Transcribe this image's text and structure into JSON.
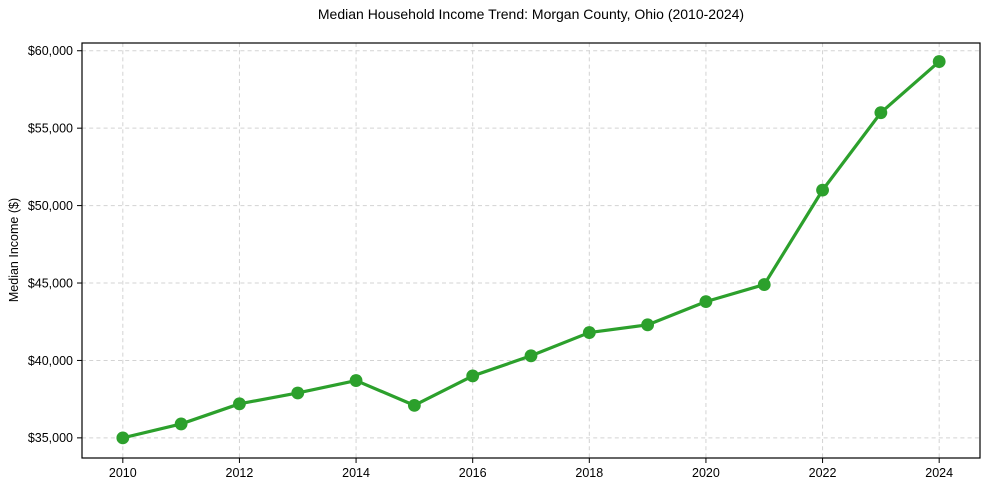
{
  "chart_data": {
    "type": "line",
    "title": "Median Household Income Trend: Morgan County, Ohio (2010-2024)",
    "xlabel": "",
    "ylabel": "Median Income ($)",
    "x": [
      2010,
      2011,
      2012,
      2013,
      2014,
      2015,
      2016,
      2017,
      2018,
      2019,
      2020,
      2021,
      2022,
      2023,
      2024
    ],
    "values": [
      35000,
      35900,
      37200,
      37900,
      38700,
      37100,
      39000,
      40300,
      41800,
      42300,
      43800,
      44900,
      51000,
      56000,
      59300
    ],
    "xticks": [
      2010,
      2012,
      2014,
      2016,
      2018,
      2020,
      2022,
      2024
    ],
    "xtick_labels": [
      "2010",
      "2012",
      "2014",
      "2016",
      "2018",
      "2020",
      "2022",
      "2024"
    ],
    "yticks": [
      35000,
      40000,
      45000,
      50000,
      55000,
      60000
    ],
    "ytick_labels": [
      "$35,000",
      "$40,000",
      "$45,000",
      "$50,000",
      "$55,000",
      "$60,000"
    ],
    "xlim": [
      2009.3,
      2024.7
    ],
    "ylim": [
      33700,
      60500
    ],
    "grid": true,
    "grid_style": "dashed",
    "legend": false,
    "marker": "circle",
    "line_color": "#2ca02c",
    "colors": {
      "background": "#ffffff",
      "grid": "#d3d3d3",
      "axis": "#000000",
      "text": "#000000"
    }
  }
}
